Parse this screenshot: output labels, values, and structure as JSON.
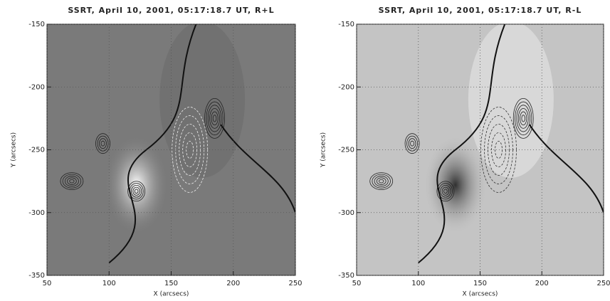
{
  "chart_data": [
    {
      "type": "image",
      "title": "SSRT, April 10, 2001, 05:17:18.7 UT, R+L",
      "x_label": "X (arcsecs)",
      "y_label": "Y (arcsecs)",
      "xlim": [
        50,
        250
      ],
      "xticks": [
        50,
        100,
        150,
        200,
        250
      ],
      "ylim": [
        -350,
        -150
      ],
      "yticks": [
        -150,
        -200,
        -250,
        -300,
        -350
      ],
      "grid": true,
      "background": "#7a7a7a"
    },
    {
      "type": "image",
      "title": "SSRT, April 10, 2001, 05:17:18.7 UT, R-L",
      "x_label": "X (arcsecs)",
      "y_label": "Y (arcsecs)",
      "xlim": [
        50,
        250
      ],
      "xticks": [
        50,
        100,
        150,
        200,
        250
      ],
      "ylim": [
        -350,
        -150
      ],
      "yticks": [
        -150,
        -200,
        -250,
        -300,
        -350
      ],
      "grid": true,
      "background": "#c4c4c4"
    }
  ]
}
